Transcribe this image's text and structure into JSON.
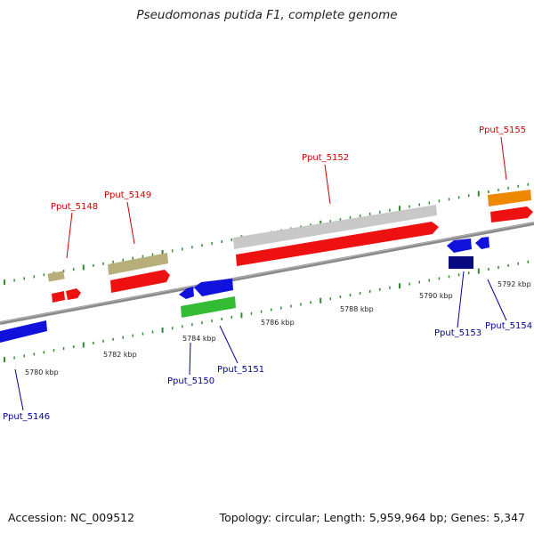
{
  "title": "Pseudomonas putida F1, complete genome",
  "footer": {
    "accession": "Accession: NC_009512",
    "topology": "Topology: circular; Length: 5,959,964 bp; Genes: 5,347"
  },
  "colors": {
    "backbone": "#8a8a8a",
    "tick": "#2e8b2e",
    "label_top": "#cc0000",
    "label_bottom": "#000099",
    "tan": "#b8ae7a",
    "red": "#ee1111",
    "grey": "#c8c8c8",
    "blue": "#1111dd",
    "navy": "#0a0a80",
    "green": "#33bb33",
    "orange": "#ee8800"
  },
  "scale_labels": [
    "5780 kbp",
    "5782 kbp",
    "5784 kbp",
    "5786 kbp",
    "5788 kbp",
    "5790 kbp",
    "5792 kbp"
  ],
  "gene_labels": [
    "Pput_5146",
    "Pput_5148",
    "Pput_5149",
    "Pput_5150",
    "Pput_5151",
    "Pput_5152",
    "Pput_5153",
    "Pput_5154",
    "Pput_5155"
  ]
}
